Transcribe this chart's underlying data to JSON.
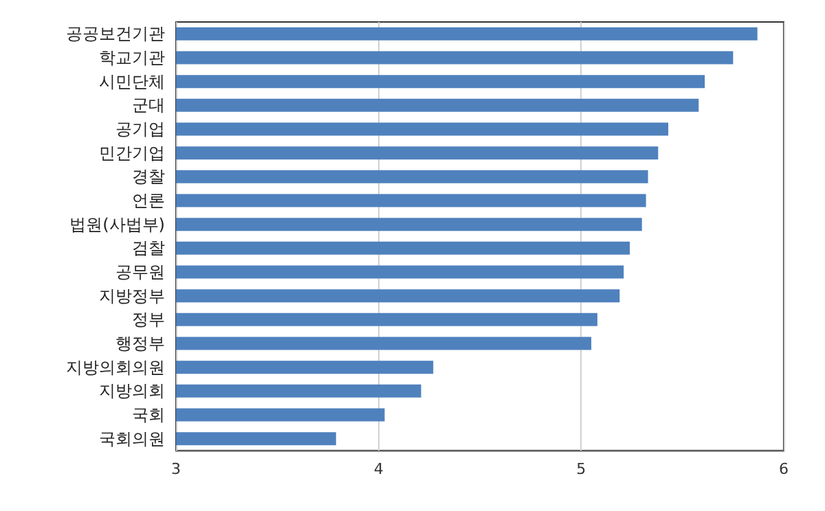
{
  "chart_data": {
    "type": "bar",
    "orientation": "horizontal",
    "categories": [
      "공공보건기관",
      "학교기관",
      "시민단체",
      "군대",
      "공기업",
      "민간기업",
      "경찰",
      "언론",
      "법원(사법부)",
      "검찰",
      "공무원",
      "지방정부",
      "정부",
      "행정부",
      "지방의회의원",
      "지방의회",
      "국회",
      "국회의원"
    ],
    "values": [
      5.87,
      5.75,
      5.61,
      5.58,
      5.43,
      5.38,
      5.33,
      5.32,
      5.3,
      5.24,
      5.21,
      5.19,
      5.08,
      5.05,
      4.27,
      4.21,
      4.03,
      3.79
    ],
    "color": "#4f81bd",
    "xlim": [
      3,
      6
    ],
    "xticks": [
      3,
      4,
      5,
      6
    ],
    "grid": "x"
  }
}
